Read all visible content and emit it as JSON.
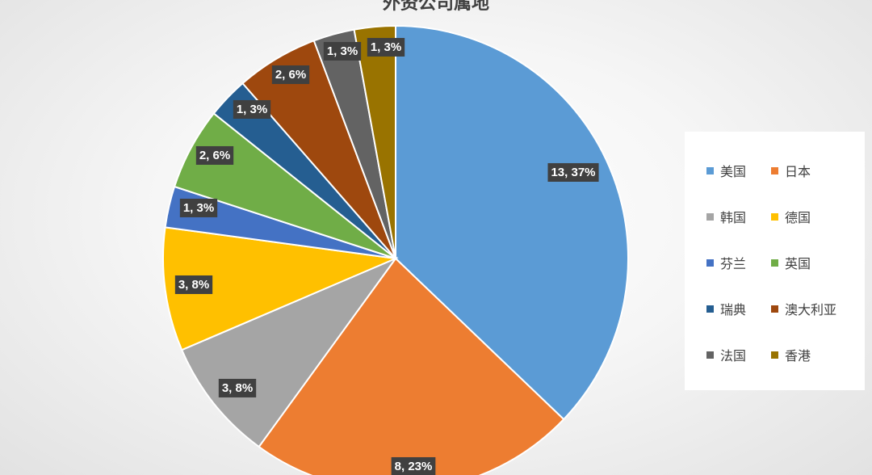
{
  "colors": {
    "background": "#efefef",
    "label_box": "#404040",
    "label_text": "#ffffff"
  },
  "chart_data": {
    "type": "pie",
    "title": "外资公司属地",
    "labels_format": "value, percent",
    "legend_position": "right",
    "slices": [
      {
        "name": "美国",
        "value": 13,
        "percent": "37%",
        "label": "13, 37%",
        "color": "#5b9bd5"
      },
      {
        "name": "日本",
        "value": 8,
        "percent": "23%",
        "label": "8, 23%",
        "color": "#ed7d31"
      },
      {
        "name": "韩国",
        "value": 3,
        "percent": "8%",
        "label": "3, 8%",
        "color": "#a5a5a5"
      },
      {
        "name": "德国",
        "value": 3,
        "percent": "8%",
        "label": "3, 8%",
        "color": "#ffc000"
      },
      {
        "name": "芬兰",
        "value": 1,
        "percent": "3%",
        "label": "1, 3%",
        "color": "#4472c4"
      },
      {
        "name": "英国",
        "value": 2,
        "percent": "6%",
        "label": "2, 6%",
        "color": "#70ad47"
      },
      {
        "name": "瑞典",
        "value": 1,
        "percent": "3%",
        "label": "1, 3%",
        "color": "#255e91"
      },
      {
        "name": "澳大利亚",
        "value": 2,
        "percent": "6%",
        "label": "2, 6%",
        "color": "#9e480e"
      },
      {
        "name": "法国",
        "value": 1,
        "percent": "3%",
        "label": "1, 3%",
        "color": "#636363"
      },
      {
        "name": "香港",
        "value": 1,
        "percent": "3%",
        "label": "1, 3%",
        "color": "#997300"
      }
    ]
  }
}
